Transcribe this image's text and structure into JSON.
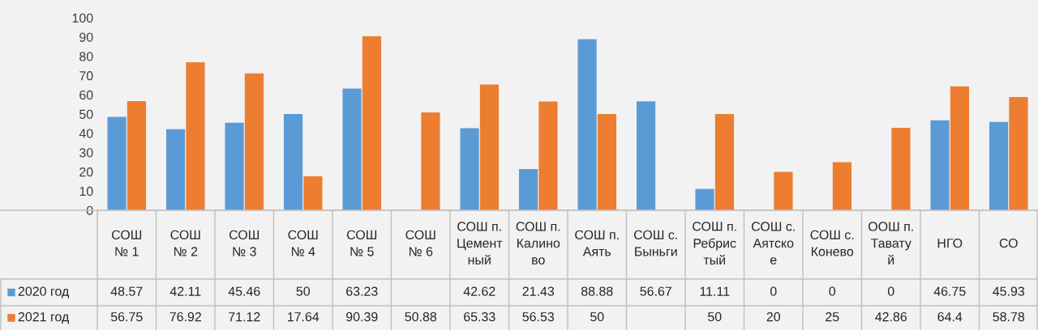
{
  "chart_data": {
    "type": "bar",
    "categories": [
      "СОШ № 1",
      "СОШ № 2",
      "СОШ № 3",
      "СОШ № 4",
      "СОШ № 5",
      "СОШ № 6",
      "СОШ п. Цементный",
      "СОШ п. Калиново",
      "СОШ п. Аять",
      "СОШ с. Быньги",
      "СОШ п. Ребристый",
      "СОШ с. Аятское",
      "СОШ с. Конево",
      "ООШ п. Таватуй",
      "НГО",
      "СО"
    ],
    "series": [
      {
        "name": "2020 год",
        "color": "#5b9bd5",
        "values": [
          48.57,
          42.11,
          45.46,
          50,
          63.23,
          null,
          42.62,
          21.43,
          88.88,
          56.67,
          11.11,
          0,
          0,
          0,
          46.75,
          45.93
        ]
      },
      {
        "name": "2021 год",
        "color": "#ed7d31",
        "values": [
          56.75,
          76.92,
          71.12,
          17.64,
          90.39,
          50.88,
          65.33,
          56.53,
          50,
          null,
          50,
          20,
          25,
          42.86,
          64.4,
          58.78
        ]
      }
    ],
    "ylim": [
      0,
      100
    ],
    "yticks": [
      0,
      10,
      20,
      30,
      40,
      50,
      60,
      70,
      80,
      90,
      100
    ],
    "data_labels": true,
    "legend": "bottom",
    "grid": false
  }
}
